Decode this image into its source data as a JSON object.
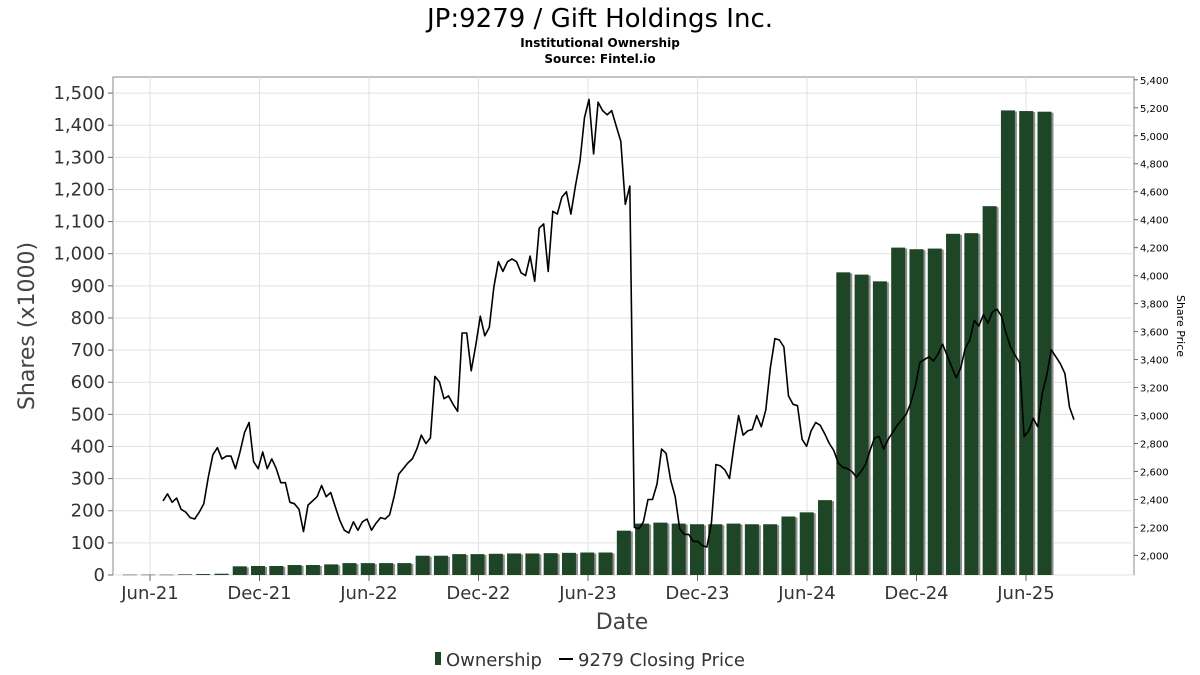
{
  "chart_data": {
    "type": "bar",
    "title": "JP:9279 / Gift Holdings Inc.",
    "subtitle": "Institutional Ownership",
    "source": "Source: Fintel.io",
    "xlabel": "Date",
    "ylabel": "Shares (x1000)",
    "ylabel_right": "Share Price",
    "ylim": [
      0,
      1550
    ],
    "ylim_right": [
      1860,
      5420
    ],
    "y_ticks": [
      0,
      100,
      200,
      300,
      400,
      500,
      600,
      700,
      800,
      900,
      1000,
      1100,
      1200,
      1300,
      1400,
      1500
    ],
    "y_right_ticks": [
      2000,
      2200,
      2400,
      2600,
      2800,
      3000,
      3200,
      3400,
      3600,
      3800,
      4000,
      4200,
      4400,
      4600,
      4800,
      5000,
      5200,
      5400
    ],
    "x_ticks": [
      "Jun-21",
      "Dec-21",
      "Jun-22",
      "Dec-22",
      "Jun-23",
      "Dec-23",
      "Jun-24",
      "Dec-24",
      "Jun-25"
    ],
    "grid": true,
    "legend_position": "bottom",
    "legend": [
      {
        "label": "Ownership",
        "marker": "bar",
        "color": "#1f4527"
      },
      {
        "label": "9279 Closing Price",
        "marker": "line",
        "color": "#000000"
      }
    ],
    "series": [
      {
        "name": "Ownership",
        "kind": "bar",
        "color": "#1f4527",
        "values": [
          1,
          1,
          1,
          2,
          3,
          4,
          27,
          28,
          28,
          31,
          31,
          33,
          37,
          37,
          37,
          37,
          60,
          60,
          65,
          65,
          66,
          67,
          67,
          68,
          69,
          70,
          70,
          138,
          160,
          163,
          160,
          158,
          158,
          160,
          158,
          158,
          182,
          195,
          233,
          942,
          935,
          914,
          1019,
          1014,
          1016,
          1062,
          1064,
          1148,
          1446,
          1444,
          1442
        ]
      },
      {
        "name": "9279 Closing Price",
        "kind": "line",
        "color": "#000000",
        "values": [
          2390,
          2440,
          2380,
          2410,
          2330,
          2310,
          2270,
          2260,
          2310,
          2370,
          2560,
          2720,
          2770,
          2690,
          2710,
          2710,
          2620,
          2740,
          2880,
          2950,
          2670,
          2620,
          2740,
          2620,
          2690,
          2620,
          2520,
          2520,
          2380,
          2370,
          2330,
          2170,
          2360,
          2390,
          2420,
          2500,
          2420,
          2450,
          2350,
          2250,
          2180,
          2160,
          2240,
          2180,
          2240,
          2260,
          2180,
          2230,
          2270,
          2260,
          2290,
          2420,
          2580,
          2620,
          2660,
          2690,
          2760,
          2860,
          2800,
          2840,
          3280,
          3240,
          3120,
          3140,
          3080,
          3030,
          3590,
          3590,
          3320,
          3500,
          3710,
          3570,
          3630,
          3920,
          4100,
          4030,
          4100,
          4120,
          4100,
          4020,
          4000,
          4140,
          3960,
          4340,
          4370,
          4030,
          4460,
          4440,
          4560,
          4600,
          4440,
          4640,
          4820,
          5130,
          5260,
          4870,
          5240,
          5180,
          5150,
          5180,
          5070,
          4960,
          4510,
          4640,
          2200,
          2190,
          2240,
          2400,
          2400,
          2510,
          2760,
          2730,
          2540,
          2420,
          2190,
          2150,
          2150,
          2100,
          2100,
          2070,
          2060,
          2230,
          2650,
          2640,
          2610,
          2550,
          2790,
          3000,
          2860,
          2890,
          2900,
          3000,
          2920,
          3040,
          3340,
          3550,
          3540,
          3490,
          3140,
          3080,
          3070,
          2830,
          2780,
          2890,
          2950,
          2930,
          2870,
          2800,
          2750,
          2660,
          2630,
          2620,
          2600,
          2560,
          2600,
          2650,
          2750,
          2840,
          2850,
          2760,
          2830,
          2880,
          2930,
          2970,
          3010,
          3090,
          3210,
          3380,
          3400,
          3420,
          3390,
          3440,
          3510,
          3430,
          3350,
          3270,
          3340,
          3480,
          3540,
          3680,
          3640,
          3720,
          3660,
          3740,
          3760,
          3710,
          3590,
          3490,
          3430,
          3380,
          2850,
          2890,
          2980,
          2920,
          3160,
          3290,
          3470,
          3420,
          3370,
          3300,
          3060,
          2970
        ]
      }
    ]
  }
}
